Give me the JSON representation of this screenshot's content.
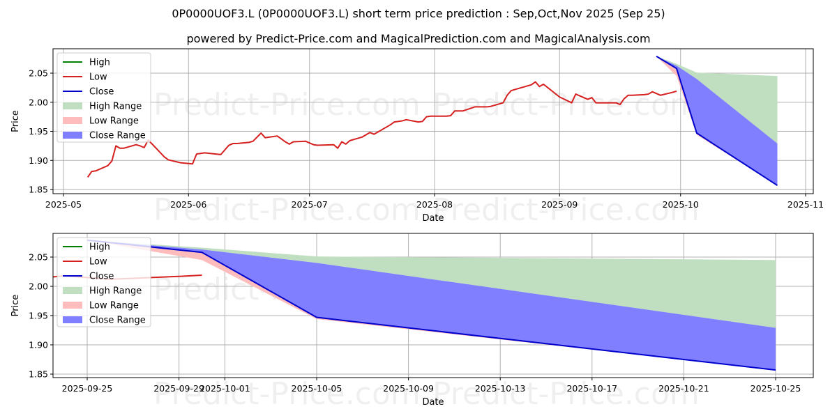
{
  "title": "0P0000UOF3.L (0P0000UOF3.L) short term price prediction : Sep,Oct,Nov 2025 (Sep 25)",
  "subtitle": "powered by Predict-Price.com and MagicalPrediction.com and MagicalAnalysis.com",
  "watermark": "Predict-Price.com",
  "colors": {
    "high": "#008000",
    "low": "#d62020",
    "close": "#0000cc",
    "high_range": "#c0dfc0",
    "low_range": "#ffbcbc",
    "close_range": "#7f7fff"
  },
  "chart_data": [
    {
      "type": "line",
      "name": "overview",
      "xlabel": "Date",
      "ylabel": "Price",
      "ylim": [
        1.845,
        2.09
      ],
      "xlim": [
        "2025-04-25",
        "2025-11-04"
      ],
      "grid": true,
      "legend_position": "top-left",
      "legend": [
        "High",
        "Low",
        "Close",
        "High Range",
        "Low Range",
        "Close Range"
      ],
      "x_ticks": [
        "2025-05",
        "2025-06",
        "2025-07",
        "2025-08",
        "2025-09",
        "2025-10",
        "2025-11"
      ],
      "x_tick_dates": [
        "2025-05-01",
        "2025-06-01",
        "2025-07-01",
        "2025-08-01",
        "2025-09-01",
        "2025-10-01",
        "2025-11-01"
      ],
      "y_ticks": [
        "1.85",
        "1.90",
        "1.95",
        "2.00",
        "2.05"
      ],
      "y_tick_values": [
        1.85,
        1.9,
        1.95,
        2.0,
        2.05
      ],
      "history": {
        "name": "Low",
        "points": [
          [
            "2025-05-07",
            1.871
          ],
          [
            "2025-05-08",
            1.881
          ],
          [
            "2025-05-09",
            1.882
          ],
          [
            "2025-05-12",
            1.891
          ],
          [
            "2025-05-13",
            1.899
          ],
          [
            "2025-05-14",
            1.925
          ],
          [
            "2025-05-15",
            1.921
          ],
          [
            "2025-05-16",
            1.921
          ],
          [
            "2025-05-19",
            1.927
          ],
          [
            "2025-05-20",
            1.925
          ],
          [
            "2025-05-21",
            1.922
          ],
          [
            "2025-05-22",
            1.935
          ],
          [
            "2025-05-23",
            1.928
          ],
          [
            "2025-05-26",
            1.906
          ],
          [
            "2025-05-27",
            1.901
          ],
          [
            "2025-05-30",
            1.896
          ],
          [
            "2025-06-02",
            1.894
          ],
          [
            "2025-06-03",
            1.911
          ],
          [
            "2025-06-04",
            1.912
          ],
          [
            "2025-06-05",
            1.913
          ],
          [
            "2025-06-09",
            1.91
          ],
          [
            "2025-06-10",
            1.918
          ],
          [
            "2025-06-11",
            1.926
          ],
          [
            "2025-06-12",
            1.929
          ],
          [
            "2025-06-13",
            1.929
          ],
          [
            "2025-06-16",
            1.931
          ],
          [
            "2025-06-17",
            1.933
          ],
          [
            "2025-06-18",
            1.94
          ],
          [
            "2025-06-19",
            1.947
          ],
          [
            "2025-06-20",
            1.939
          ],
          [
            "2025-06-23",
            1.942
          ],
          [
            "2025-06-24",
            1.937
          ],
          [
            "2025-06-25",
            1.932
          ],
          [
            "2025-06-26",
            1.928
          ],
          [
            "2025-06-27",
            1.932
          ],
          [
            "2025-06-30",
            1.933
          ],
          [
            "2025-07-01",
            1.93
          ],
          [
            "2025-07-02",
            1.927
          ],
          [
            "2025-07-03",
            1.926
          ],
          [
            "2025-07-07",
            1.927
          ],
          [
            "2025-07-08",
            1.921
          ],
          [
            "2025-07-09",
            1.932
          ],
          [
            "2025-07-10",
            1.928
          ],
          [
            "2025-07-11",
            1.934
          ],
          [
            "2025-07-14",
            1.94
          ],
          [
            "2025-07-15",
            1.944
          ],
          [
            "2025-07-16",
            1.948
          ],
          [
            "2025-07-17",
            1.945
          ],
          [
            "2025-07-18",
            1.949
          ],
          [
            "2025-07-21",
            1.961
          ],
          [
            "2025-07-22",
            1.966
          ],
          [
            "2025-07-24",
            1.968
          ],
          [
            "2025-07-25",
            1.97
          ],
          [
            "2025-07-28",
            1.966
          ],
          [
            "2025-07-29",
            1.967
          ],
          [
            "2025-07-30",
            1.975
          ],
          [
            "2025-07-31",
            1.976
          ],
          [
            "2025-08-04",
            1.976
          ],
          [
            "2025-08-05",
            1.977
          ],
          [
            "2025-08-06",
            1.985
          ],
          [
            "2025-08-07",
            1.985
          ],
          [
            "2025-08-08",
            1.985
          ],
          [
            "2025-08-11",
            1.992
          ],
          [
            "2025-08-12",
            1.992
          ],
          [
            "2025-08-14",
            1.992
          ],
          [
            "2025-08-15",
            1.993
          ],
          [
            "2025-08-18",
            1.999
          ],
          [
            "2025-08-19",
            2.012
          ],
          [
            "2025-08-20",
            2.02
          ],
          [
            "2025-08-22",
            2.024
          ],
          [
            "2025-08-25",
            2.03
          ],
          [
            "2025-08-26",
            2.035
          ],
          [
            "2025-08-27",
            2.027
          ],
          [
            "2025-08-28",
            2.031
          ],
          [
            "2025-09-01",
            2.009
          ],
          [
            "2025-09-04",
            1.999
          ],
          [
            "2025-09-05",
            2.014
          ],
          [
            "2025-09-08",
            2.005
          ],
          [
            "2025-09-09",
            2.008
          ],
          [
            "2025-09-10",
            1.999
          ],
          [
            "2025-09-11",
            1.999
          ],
          [
            "2025-09-15",
            1.999
          ],
          [
            "2025-09-16",
            1.996
          ],
          [
            "2025-09-17",
            2.006
          ],
          [
            "2025-09-18",
            2.012
          ],
          [
            "2025-09-19",
            2.012
          ],
          [
            "2025-09-22",
            2.013
          ],
          [
            "2025-09-23",
            2.014
          ],
          [
            "2025-09-24",
            2.018
          ],
          [
            "2025-09-25",
            2.015
          ],
          [
            "2025-09-26",
            2.012
          ],
          [
            "2025-09-29",
            2.017
          ],
          [
            "2025-09-30",
            2.019
          ]
        ]
      }
    },
    {
      "type": "area",
      "name": "forecast",
      "xlabel": "Date",
      "ylabel": "Price",
      "ylim": [
        1.845,
        2.09
      ],
      "xlim": [
        "2025-09-23",
        "2025-10-26"
      ],
      "grid": true,
      "legend_position": "top-left",
      "legend": [
        "High",
        "Low",
        "Close",
        "High Range",
        "Low Range",
        "Close Range"
      ],
      "x_ticks": [
        "2025-09-25",
        "2025-09-29",
        "2025-10-01",
        "2025-10-05",
        "2025-10-09",
        "2025-10-13",
        "2025-10-17",
        "2025-10-21",
        "2025-10-25"
      ],
      "y_ticks": [
        "1.85",
        "1.90",
        "1.95",
        "2.00",
        "2.05"
      ],
      "y_tick_values": [
        1.85,
        1.9,
        1.95,
        2.0,
        2.05
      ],
      "dates": [
        "2025-09-25",
        "2025-09-30",
        "2025-10-05",
        "2025-10-25"
      ],
      "close": [
        2.079,
        2.058,
        1.947,
        1.857
      ],
      "close_range_upper": [
        2.079,
        2.063,
        2.04,
        1.929
      ],
      "high_range_upper": [
        2.079,
        2.066,
        2.051,
        2.045
      ],
      "low_range_lower": [
        2.079,
        2.045,
        1.944,
        1.857
      ]
    }
  ]
}
